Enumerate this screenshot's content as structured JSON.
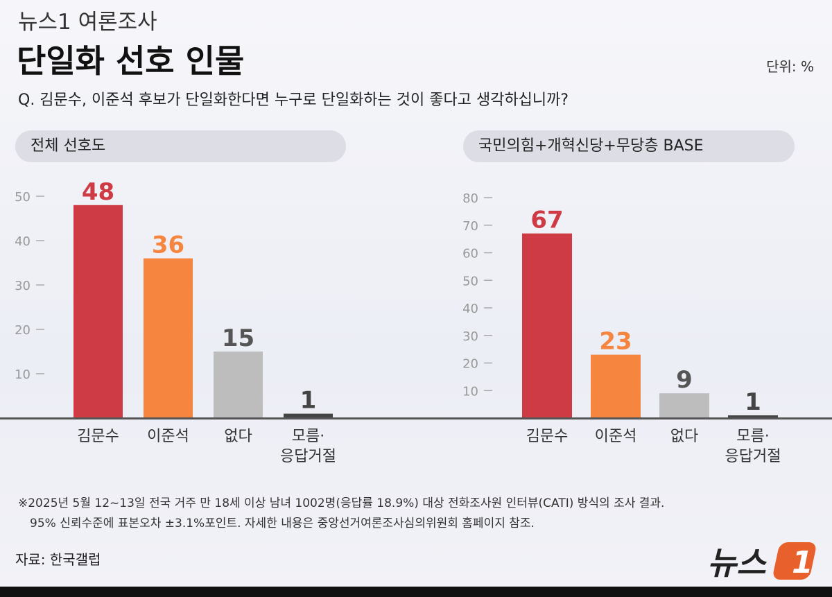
{
  "header": {
    "kicker": "뉴스1 여론조사",
    "title": "단일화 선호 인물",
    "unit": "단위: %",
    "question": "Q. 김문수, 이준석 후보가 단일화한다면 누구로 단일화하는 것이 좋다고 생각하십니까?"
  },
  "colors": {
    "red": "#cf3b45",
    "orange": "#f5853f",
    "gray": "#bdbdbd",
    "dark": "#444444"
  },
  "chart_data": [
    {
      "type": "bar",
      "title": "전체 선호도",
      "categories": [
        "김문수",
        "이준석",
        "없다",
        "모름·응답거절"
      ],
      "category_lines": [
        [
          "김문수"
        ],
        [
          "이준석"
        ],
        [
          "없다"
        ],
        [
          "모름·",
          "응답거절"
        ]
      ],
      "values": [
        48,
        36,
        15,
        1
      ],
      "yticks": [
        10,
        20,
        30,
        40,
        50
      ],
      "ylim": [
        0,
        50
      ]
    },
    {
      "type": "bar",
      "title": "국민의힘+개혁신당+무당층 BASE",
      "categories": [
        "김문수",
        "이준석",
        "없다",
        "모름·응답거절"
      ],
      "category_lines": [
        [
          "김문수"
        ],
        [
          "이준석"
        ],
        [
          "없다"
        ],
        [
          "모름·",
          "응답거절"
        ]
      ],
      "values": [
        67,
        23,
        9,
        1
      ],
      "yticks": [
        10,
        20,
        30,
        40,
        50,
        60,
        70,
        80
      ],
      "ylim": [
        0,
        80
      ]
    }
  ],
  "footer": {
    "note_line1": "※2025년 5월 12~13일 전국 거주 만 18세 이상 남녀 1002명(응답률 18.9%) 대상 전화조사원 인터뷰(CATI) 방식의 조사 결과.",
    "note_line2": "95% 신뢰수준에 표본오차 ±3.1%포인트. 자세한 내용은 중앙선거여론조사심의위원회 홈페이지 참조.",
    "source": "자료: 한국갤럽",
    "logo_text": "뉴스",
    "logo_mark": "1"
  }
}
